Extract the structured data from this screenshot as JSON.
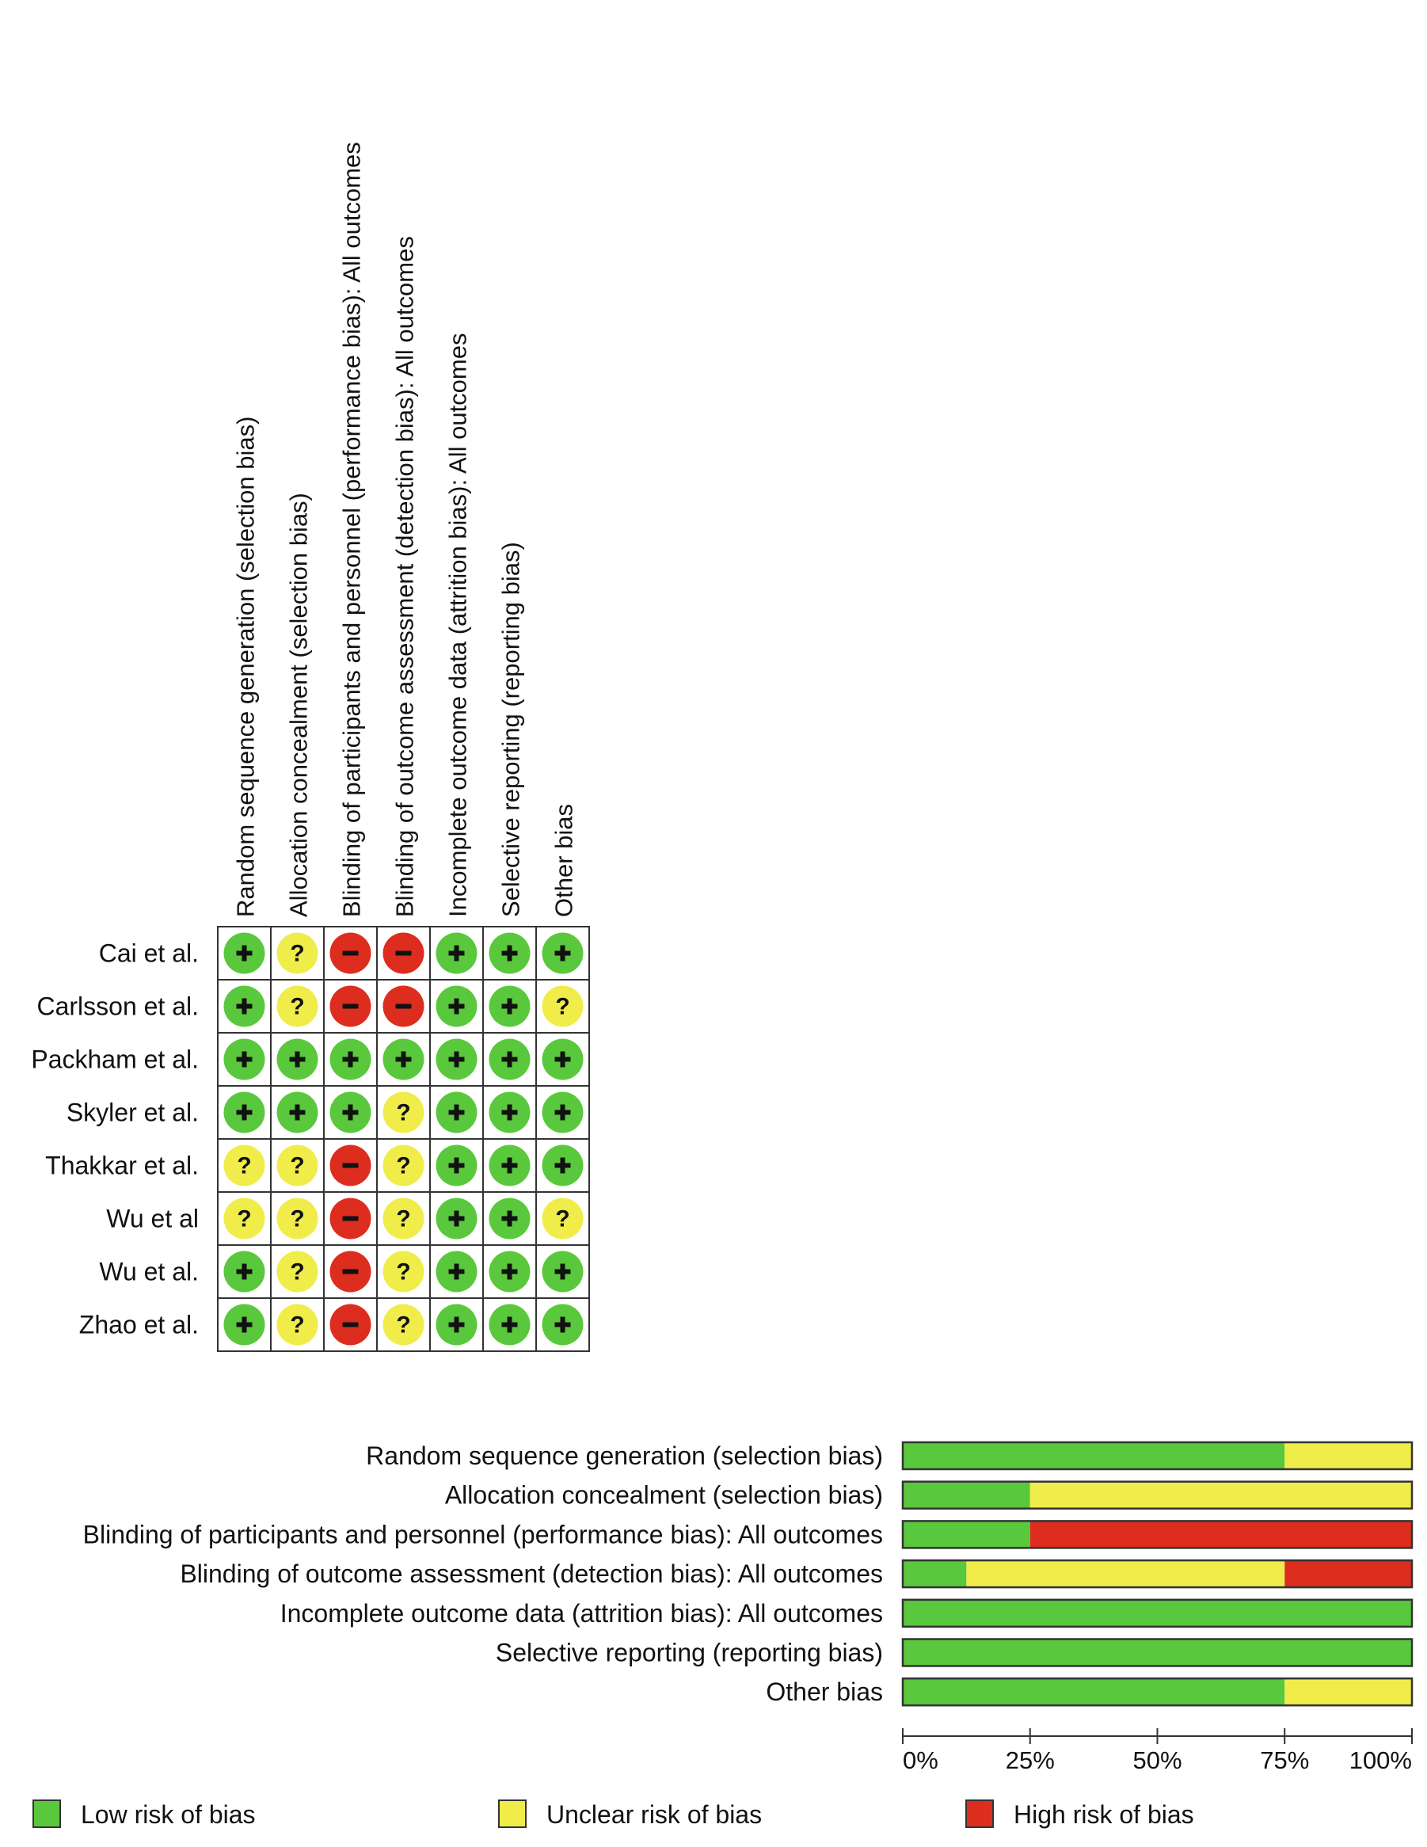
{
  "chart_data": [
    {
      "type": "table",
      "domains": [
        "Random sequence generation (selection bias)",
        "Allocation concealment (selection bias)",
        "Blinding of participants and personnel (performance bias): All outcomes",
        "Blinding of outcome assessment (detection bias): All outcomes",
        "Incomplete outcome data (attrition bias): All outcomes",
        "Selective reporting (reporting bias)",
        "Other bias"
      ],
      "studies": [
        {
          "name": "Cai et al.",
          "judgements": [
            "low",
            "unclear",
            "high",
            "high",
            "low",
            "low",
            "low"
          ]
        },
        {
          "name": "Carlsson et al.",
          "judgements": [
            "low",
            "unclear",
            "high",
            "high",
            "low",
            "low",
            "unclear"
          ]
        },
        {
          "name": "Packham et al.",
          "judgements": [
            "low",
            "low",
            "low",
            "low",
            "low",
            "low",
            "low"
          ]
        },
        {
          "name": "Skyler et al.",
          "judgements": [
            "low",
            "low",
            "low",
            "unclear",
            "low",
            "low",
            "low"
          ]
        },
        {
          "name": "Thakkar et al.",
          "judgements": [
            "unclear",
            "unclear",
            "high",
            "unclear",
            "low",
            "low",
            "low"
          ]
        },
        {
          "name": "Wu et al",
          "judgements": [
            "unclear",
            "unclear",
            "high",
            "unclear",
            "low",
            "low",
            "unclear"
          ]
        },
        {
          "name": "Wu et al.",
          "judgements": [
            "low",
            "unclear",
            "high",
            "unclear",
            "low",
            "low",
            "low"
          ]
        },
        {
          "name": "Zhao et al.",
          "judgements": [
            "low",
            "unclear",
            "high",
            "unclear",
            "low",
            "low",
            "low"
          ]
        }
      ],
      "symbols": {
        "low": "+",
        "unclear": "?",
        "high": "−"
      }
    },
    {
      "type": "bar",
      "stacked": true,
      "orientation": "horizontal",
      "categories": [
        "Random sequence generation (selection bias)",
        "Allocation concealment (selection bias)",
        "Blinding of participants and personnel (performance bias): All outcomes",
        "Blinding of outcome assessment (detection bias): All outcomes",
        "Incomplete outcome data (attrition bias): All outcomes",
        "Selective reporting (reporting bias)",
        "Other bias"
      ],
      "series": [
        {
          "name": "Low risk of bias",
          "color": "#5ac83c",
          "values": [
            75,
            25,
            25,
            12.5,
            100,
            100,
            75
          ]
        },
        {
          "name": "Unclear risk of bias",
          "color": "#f0ec4a",
          "values": [
            25,
            75,
            0,
            62.5,
            0,
            0,
            25
          ]
        },
        {
          "name": "High risk of bias",
          "color": "#dc2d1e",
          "values": [
            0,
            0,
            75,
            25,
            0,
            0,
            0
          ]
        }
      ],
      "xlim": [
        0,
        100
      ],
      "xticks": [
        "0%",
        "25%",
        "50%",
        "75%",
        "100%"
      ],
      "legend": "bottom"
    }
  ],
  "colors": {
    "low": "#5ac83c",
    "unclear": "#f0ec4a",
    "high": "#dc2d1e",
    "border": "#333333"
  }
}
